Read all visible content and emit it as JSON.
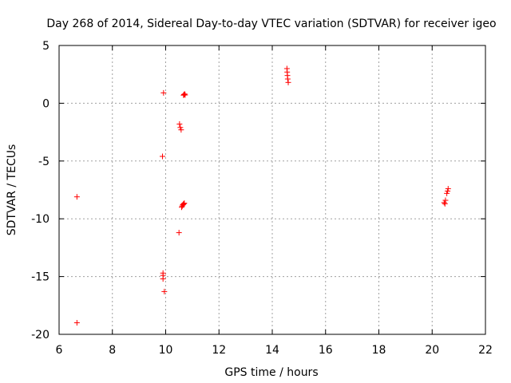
{
  "chart_data": {
    "type": "scatter",
    "title": "Day 268 of 2014, Sidereal Day-to-day VTEC variation (SDTVAR) for receiver igeo",
    "xlabel": "GPS time / hours",
    "ylabel": "SDTVAR / TECUs",
    "xlim": [
      6,
      22
    ],
    "ylim": [
      -20,
      5
    ],
    "grid": true,
    "xticks": [
      "6",
      "8",
      "10",
      "12",
      "14",
      "16",
      "18",
      "20",
      "22"
    ],
    "yticks": [
      "5",
      "0",
      "-5",
      "-10",
      "-15",
      "-20"
    ],
    "marker": "+",
    "color": "#ff0000",
    "series": [
      {
        "name": "SDTVAR",
        "points": [
          [
            6.67,
            -8.1
          ],
          [
            6.67,
            -19.0
          ],
          [
            9.88,
            -4.6
          ],
          [
            9.92,
            0.9
          ],
          [
            9.9,
            -14.7
          ],
          [
            9.9,
            -14.9
          ],
          [
            9.9,
            -15.2
          ],
          [
            9.95,
            -16.3
          ],
          [
            10.5,
            -11.2
          ],
          [
            10.52,
            -1.8
          ],
          [
            10.55,
            -2.1
          ],
          [
            10.58,
            -2.3
          ],
          [
            10.6,
            -9.0
          ],
          [
            10.62,
            -8.9
          ],
          [
            10.64,
            -8.8
          ],
          [
            10.66,
            -8.75
          ],
          [
            10.68,
            -8.7
          ],
          [
            10.7,
            -8.65
          ],
          [
            10.67,
            0.7
          ],
          [
            10.69,
            0.75
          ],
          [
            10.71,
            0.8
          ],
          [
            10.73,
            0.72
          ],
          [
            14.55,
            3.0
          ],
          [
            14.56,
            2.7
          ],
          [
            14.57,
            2.4
          ],
          [
            14.58,
            2.1
          ],
          [
            14.6,
            1.8
          ],
          [
            20.45,
            -8.6
          ],
          [
            20.48,
            -8.7
          ],
          [
            20.5,
            -8.4
          ],
          [
            20.55,
            -7.8
          ],
          [
            20.58,
            -7.6
          ],
          [
            20.6,
            -7.4
          ]
        ]
      }
    ]
  }
}
